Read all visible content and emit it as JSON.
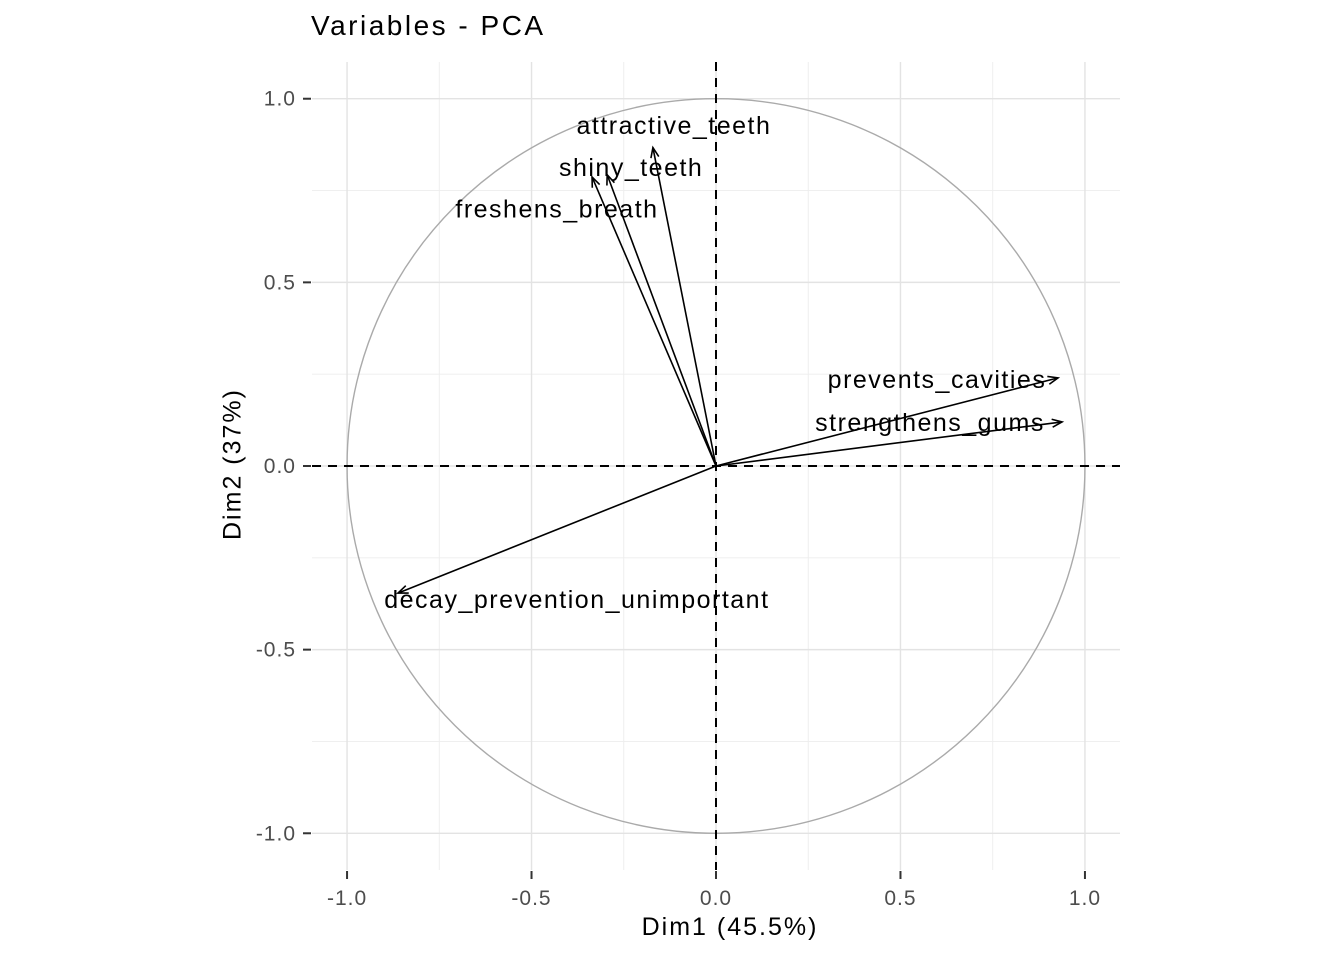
{
  "window": {
    "background": "#ffffff"
  },
  "chart_data": {
    "type": "scatter",
    "subtype": "pca-variable-correlation-circle",
    "title": "Variables - PCA",
    "xlabel": "Dim1 (45.5%)",
    "ylabel": "Dim2 (37%)",
    "xlim": [
      -1.095,
      1.095
    ],
    "ylim": [
      -1.1,
      1.1
    ],
    "x_ticks": {
      "values": [
        -1.0,
        -0.5,
        0.0,
        0.5,
        1.0
      ],
      "labels": [
        "-1.0",
        "-0.5",
        "0.0",
        "0.5",
        "1.0"
      ]
    },
    "y_ticks": {
      "values": [
        -1.0,
        -0.5,
        0.0,
        0.5,
        1.0
      ],
      "labels": [
        "-1.0",
        "-0.5",
        "0.0",
        "0.5",
        "1.0"
      ]
    },
    "minor_grid": [
      -0.75,
      -0.25,
      0.25,
      0.75
    ],
    "reference_lines": {
      "vertical_x": 0.0,
      "horizontal_y": 0.0,
      "style": "dashed"
    },
    "unit_circle": {
      "radius": 1.0
    },
    "grid": true,
    "legend": "none",
    "variables": [
      {
        "name": "attractive_teeth",
        "x": -0.171,
        "y": 0.867,
        "label_x": -0.114,
        "label_y": 0.926
      },
      {
        "name": "shiny_teeth",
        "x": -0.295,
        "y": 0.793,
        "label_x": -0.23,
        "label_y": 0.811
      },
      {
        "name": "freshens_breath",
        "x": -0.336,
        "y": 0.787,
        "label_x": -0.431,
        "label_y": 0.699
      },
      {
        "name": "prevents_cavities",
        "x": 0.927,
        "y": 0.24,
        "label_x": 0.599,
        "label_y": 0.234
      },
      {
        "name": "strengthens_gums",
        "x": 0.938,
        "y": 0.12,
        "label_x": 0.58,
        "label_y": 0.117
      },
      {
        "name": "decay_prevention_unimportant",
        "x": -0.862,
        "y": -0.346,
        "label_x": -0.377,
        "label_y": -0.365
      }
    ],
    "colors": {
      "arrow": "#000000",
      "variable_label": "#000000",
      "reference_line": "#000000",
      "circle": "#aaaaaa",
      "grid_major": "#e3e3e3",
      "grid_minor": "#ededed",
      "tick_mark": "#333333",
      "tick_label": "#4d4d4d",
      "axis_title": "#000000",
      "title": "#000000",
      "background": "#ffffff"
    }
  }
}
